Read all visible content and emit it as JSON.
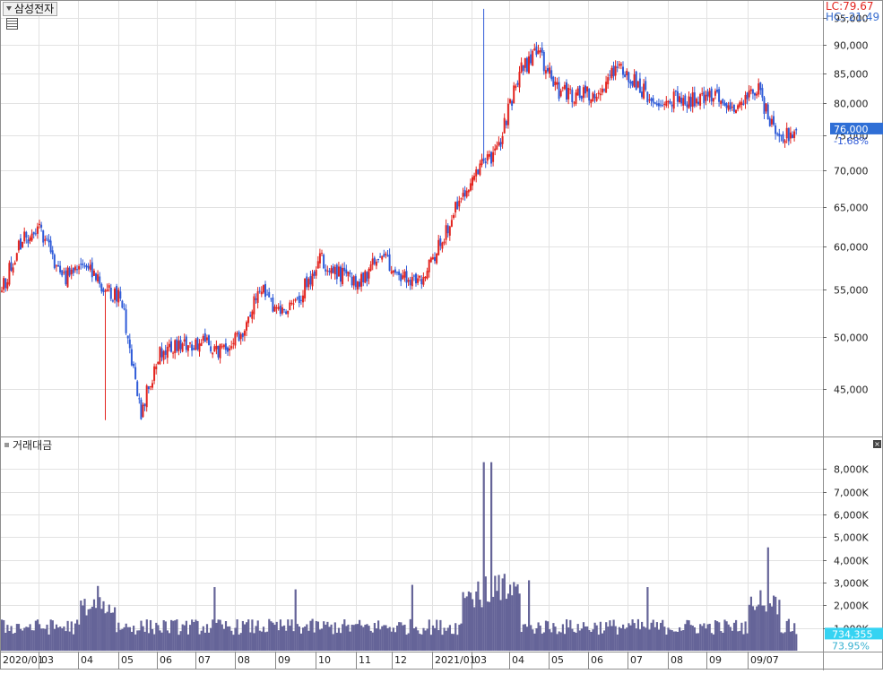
{
  "header": {
    "stock_name": "삼성전자",
    "lc_label": "LC:79.67",
    "hc_label": "HC:-21.49"
  },
  "volume_panel": {
    "title": "거래대금"
  },
  "colors": {
    "up": "#e3241f",
    "down": "#2f5bd8",
    "volume_fill": "#656498",
    "grid": "#e2e2e2",
    "price_tag_bg": "#2f6fd6",
    "volume_tag_bg": "#35d3f2",
    "lc_color": "#e3241f",
    "hc_color": "#3a6fd0"
  },
  "chart_data": [
    {
      "type": "candlestick",
      "title": "삼성전자",
      "x_tick_labels": [
        "2020/01",
        "03",
        "04",
        "05",
        "06",
        "07",
        "08",
        "09",
        "10",
        "11",
        "12",
        "2021/01",
        "03",
        "04",
        "05",
        "06",
        "07",
        "08",
        "09",
        "09/07"
      ],
      "y_tick_labels": [
        "45,000",
        "50,000",
        "55,000",
        "60,000",
        "65,000",
        "70,000",
        "75,000",
        "80,000",
        "85,000",
        "90,000",
        "95,000"
      ],
      "y_ticks": [
        45000,
        50000,
        55000,
        60000,
        65000,
        70000,
        75000,
        80000,
        85000,
        90000,
        95000
      ],
      "scale": "log",
      "ylim": [
        41000,
        98000
      ],
      "months": [
        "2020-01",
        "2020-02",
        "2020-03",
        "2020-04",
        "2020-05",
        "2020-06",
        "2020-07",
        "2020-08",
        "2020-09",
        "2020-10",
        "2020-11",
        "2020-12",
        "2021-01",
        "2021-02",
        "2021-03",
        "2021-04",
        "2021-05",
        "2021-06",
        "2021-07",
        "2021-08",
        "2021-09"
      ],
      "close_path": [
        55000,
        60800,
        62000,
        56000,
        58500,
        55500,
        54000,
        43000,
        48800,
        49000,
        49500,
        48500,
        50000,
        55000,
        52700,
        54500,
        58400,
        56800,
        55500,
        59000,
        57000,
        56000,
        60000,
        66000,
        70000,
        73400,
        85000,
        88800,
        82000,
        81400,
        82100,
        86000,
        83000,
        80000,
        80700,
        81000,
        81800,
        78500,
        82700,
        74000,
        76000
      ],
      "high": 96800,
      "low": 42300,
      "last_price": "76,000",
      "last_change": "-1.68%",
      "grid": true
    },
    {
      "type": "bar",
      "title": "거래대금",
      "y_tick_labels": [
        "1,000K",
        "2,000K",
        "3,000K",
        "4,000K",
        "5,000K",
        "6,000K",
        "7,000K",
        "8,000K"
      ],
      "y_ticks": [
        1000,
        2000,
        3000,
        4000,
        5000,
        6000,
        7000,
        8000
      ],
      "ylim": [
        0,
        8800
      ],
      "unit": "K",
      "peak_value": 8300,
      "last_value": "734,355",
      "last_ratio": "73.95%",
      "spikes": [
        {
          "month": "2020-03",
          "value": 2850
        },
        {
          "month": "2020-06",
          "value": 2800
        },
        {
          "month": "2020-08",
          "value": 2700
        },
        {
          "month": "2020-11",
          "value": 2900
        },
        {
          "month": "2021-01",
          "value": 8300
        },
        {
          "month": "2021-02",
          "value": 3100
        },
        {
          "month": "2021-05",
          "value": 2800
        },
        {
          "month": "2021-08",
          "value": 4550
        }
      ],
      "grid": true
    }
  ]
}
